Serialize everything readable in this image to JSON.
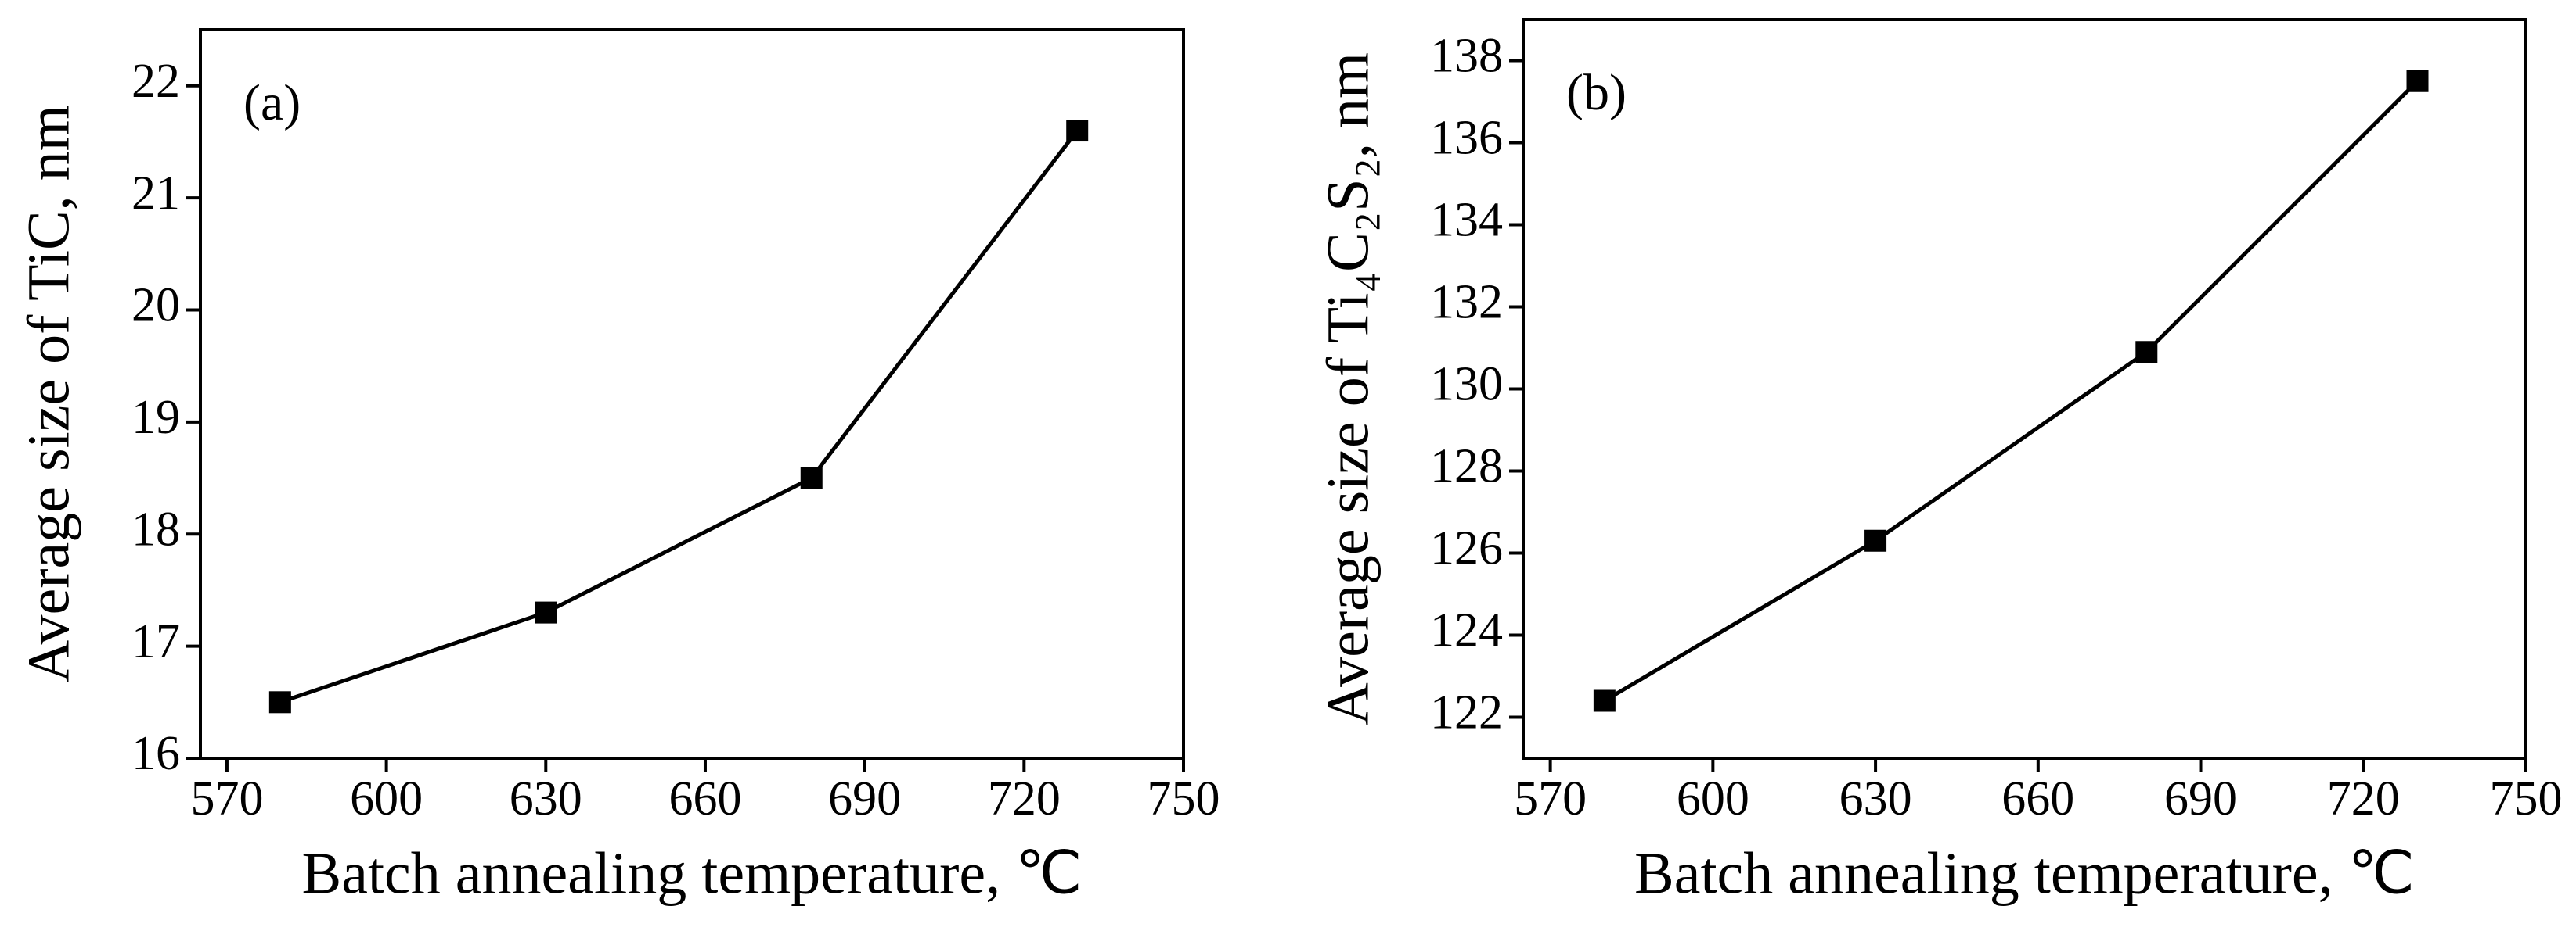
{
  "chart_data": [
    {
      "type": "line",
      "annotation": "(a)",
      "x_label": "Batch annealing temperature, ℃",
      "y_label": "Average size of TiC, nm",
      "x": [
        580,
        630,
        680,
        730
      ],
      "series": [
        {
          "name": "TiC",
          "color": "#000000",
          "values": [
            16.5,
            17.3,
            18.5,
            21.6
          ]
        }
      ],
      "xlim": [
        565,
        750
      ],
      "xticks": [
        570,
        600,
        630,
        660,
        690,
        720,
        750
      ],
      "ylim": [
        16,
        22.5
      ],
      "yticks": [
        16,
        17,
        18,
        19,
        20,
        21,
        22
      ]
    },
    {
      "type": "line",
      "annotation": "(b)",
      "x_label": "Batch annealing temperature, ℃",
      "y_label": "Average size of Ti₄C₂S₂, nm",
      "x": [
        580,
        630,
        680,
        730
      ],
      "series": [
        {
          "name": "Ti₄C₂S₂",
          "color": "#000000",
          "values": [
            122.4,
            126.3,
            130.9,
            137.5
          ]
        }
      ],
      "xlim": [
        565,
        750
      ],
      "xticks": [
        570,
        600,
        630,
        660,
        690,
        720,
        750
      ],
      "ylim": [
        121,
        139
      ],
      "yticks": [
        122,
        124,
        126,
        128,
        130,
        132,
        134,
        136,
        138
      ]
    }
  ]
}
